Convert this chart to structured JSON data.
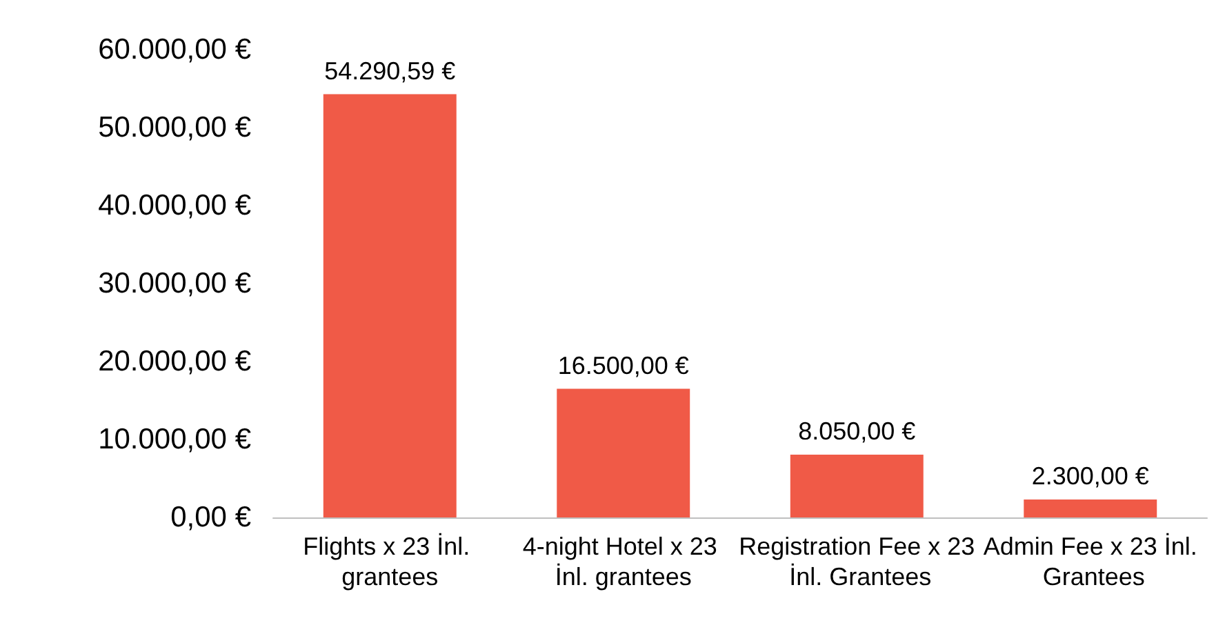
{
  "chart_data": {
    "type": "bar",
    "categories": [
      "Flights x 23 İnl. grantees",
      "4-night Hotel x 23 İnl. grantees",
      "Registration Fee x 23 İnl. Grantees",
      "Admin Fee x 23 İnl. Grantees"
    ],
    "values": [
      54290.59,
      16500,
      8050,
      2300
    ],
    "value_labels": [
      "54.290,59 €",
      "16.500,00 €",
      "8.050,00 €",
      "2.300,00 €"
    ],
    "color": "#f05a47",
    "ylim": [
      0,
      60000
    ],
    "yticks": [
      {
        "value": 0,
        "label": "0,00 €"
      },
      {
        "value": 10000,
        "label": "10.000,00 €"
      },
      {
        "value": 20000,
        "label": "20.000,00 €"
      },
      {
        "value": 30000,
        "label": "30.000,00 €"
      },
      {
        "value": 40000,
        "label": "40.000,00 €"
      },
      {
        "value": 50000,
        "label": "50.000,00 €"
      },
      {
        "value": 60000,
        "label": "60.000,00 €"
      }
    ]
  }
}
